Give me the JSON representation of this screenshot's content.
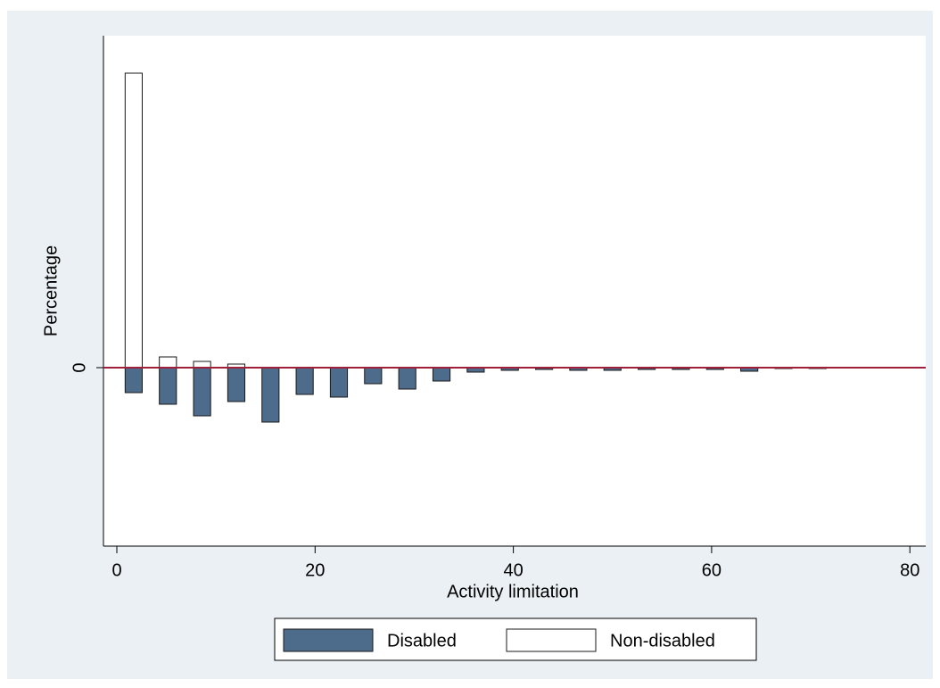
{
  "chart_data": {
    "type": "bar",
    "x_label": "Activity limitation",
    "y_label": "Percentage",
    "x": [
      1.7,
      5.15,
      8.6,
      12.05,
      15.5,
      18.95,
      22.4,
      25.85,
      29.3,
      32.75,
      36.2,
      39.65,
      43.1,
      46.55,
      50,
      53.45,
      56.9,
      60.35,
      63.8,
      67.25,
      70.7
    ],
    "series": [
      {
        "name": "Disabled",
        "color": "#4d6b8a",
        "values": [
          -2.8,
          -4.1,
          -5.4,
          -3.8,
          -6.1,
          -3.0,
          -3.3,
          -1.8,
          -2.4,
          -1.5,
          -0.5,
          -0.3,
          -0.2,
          -0.3,
          -0.3,
          -0.2,
          -0.2,
          -0.2,
          -0.4,
          -0.1,
          -0.1
        ]
      },
      {
        "name": "Non-disabled",
        "color": "#ffffff",
        "values": [
          33,
          1.2,
          0.7,
          0.4,
          0,
          0,
          0,
          0,
          0,
          0,
          0,
          0,
          0,
          0,
          0,
          0,
          0,
          0,
          0,
          0,
          0
        ]
      }
    ],
    "xlim": [
      -1.35,
      81.6
    ],
    "xticks": [
      0,
      20,
      40,
      60,
      80
    ],
    "ylim": [
      -20,
      37.2
    ],
    "yticks": [
      0
    ],
    "zero_line_color": "#a0203c",
    "legend": "bottom"
  }
}
